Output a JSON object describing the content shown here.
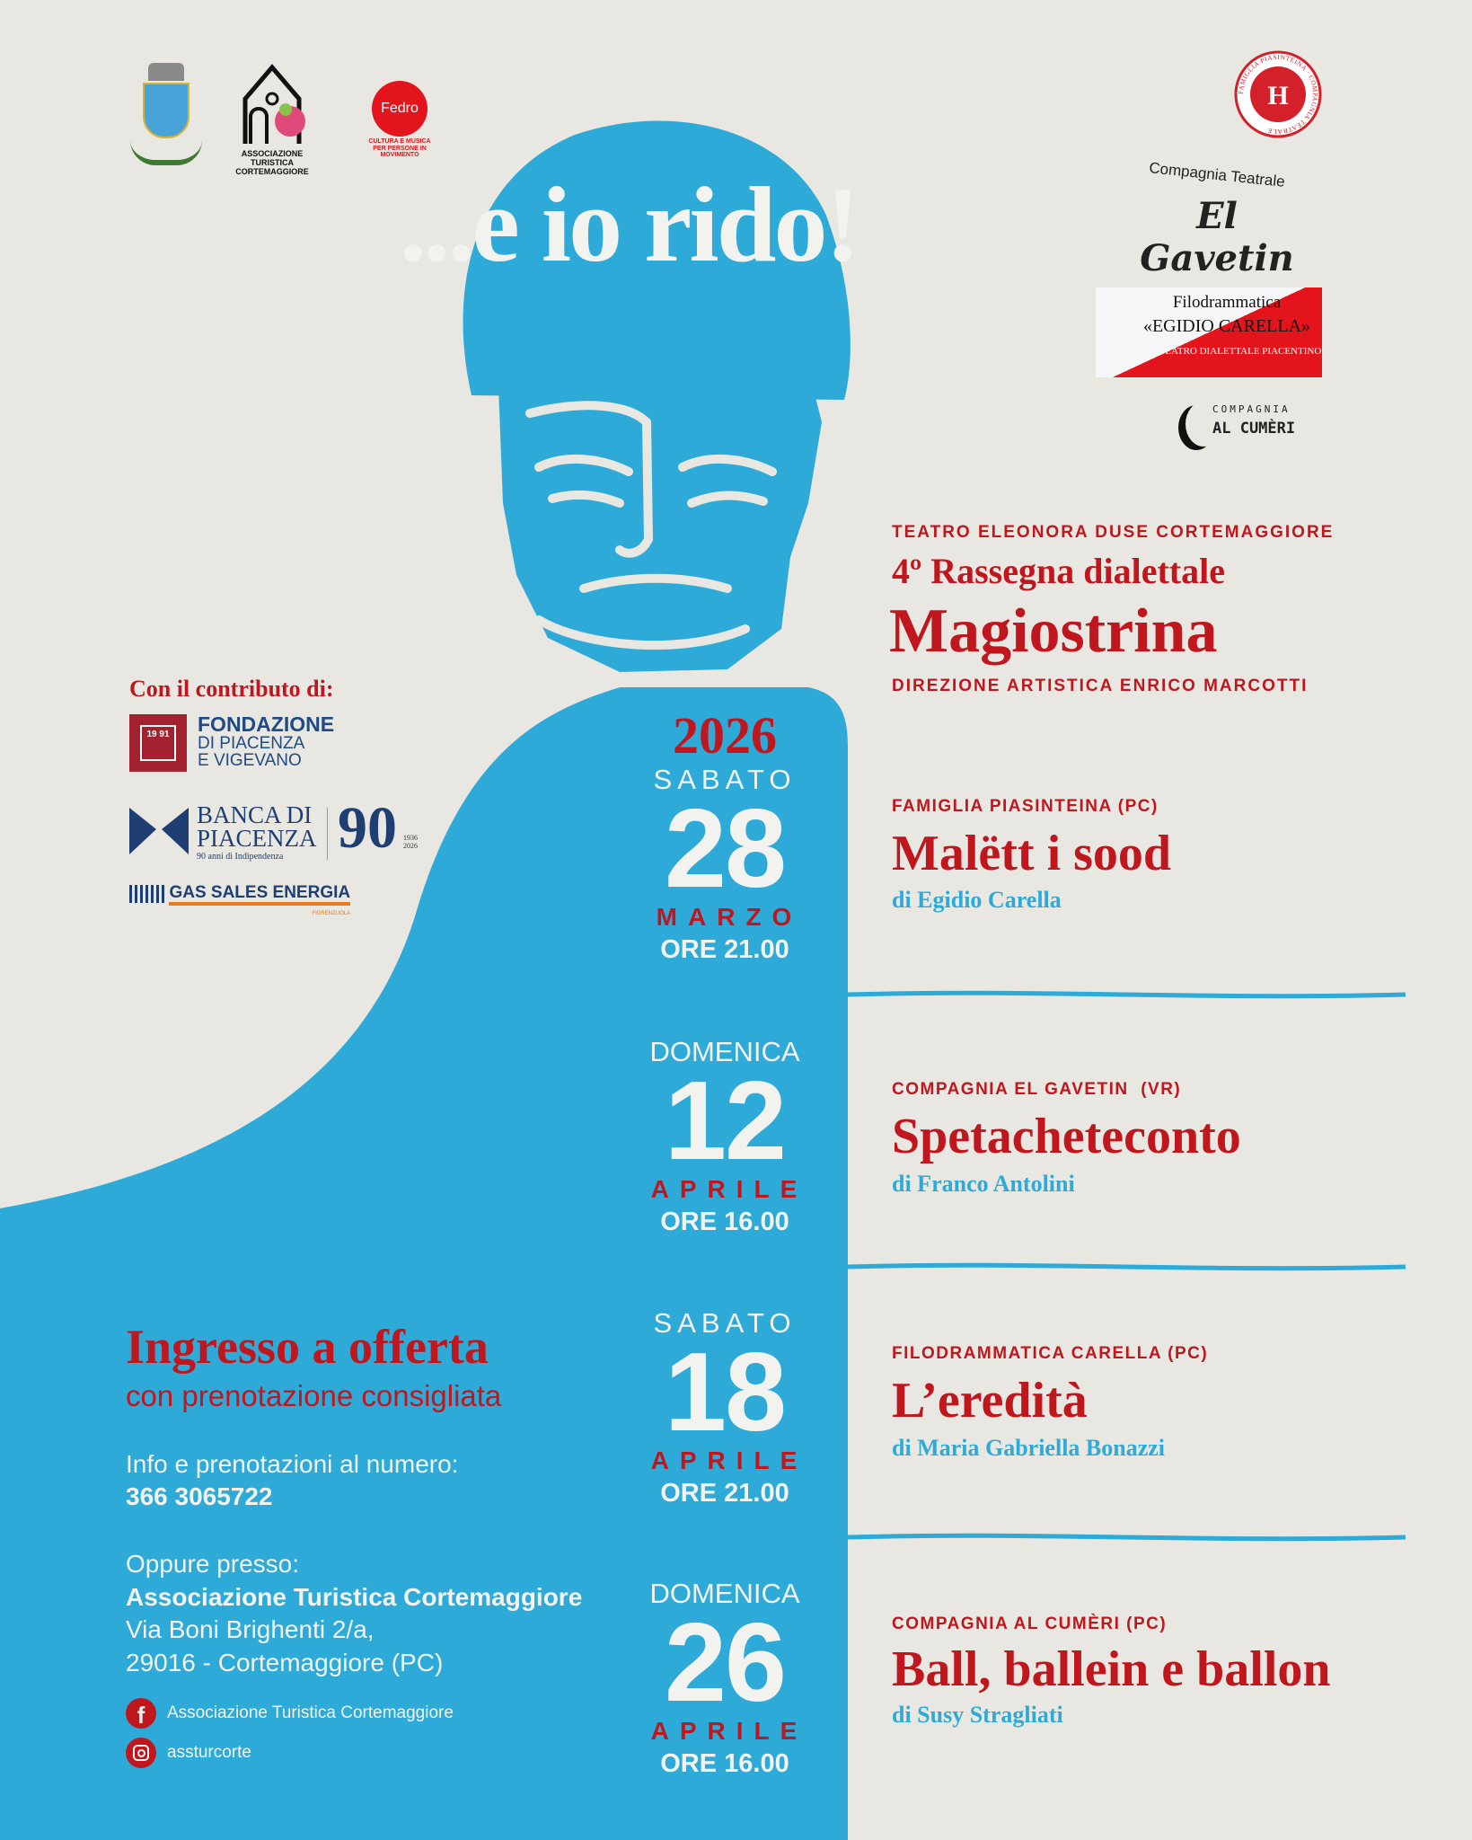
{
  "colors": {
    "background": "#e8e7e1",
    "blue": "#2eaad8",
    "red": "#c0161e",
    "light": "#f2f2ee"
  },
  "headline": "...e io rido!",
  "logos_top_left": {
    "comune": "Cortemaggiore",
    "associazione": [
      "ASSOCIAZIONE",
      "TURISTICA",
      "CORTEMAGGIORE"
    ],
    "fedro": {
      "name": "Fedro",
      "tagline": [
        "CULTURA E MUSICA",
        "PER PERSONE IN MOVIMENTO"
      ]
    }
  },
  "logos_top_right": {
    "famiglia": "FAMIGLIA PIASINTEINA · COMPAGNIA TEATRALE",
    "gavetin": {
      "line1": "Compagnia Teatrale",
      "line2": "El Gavetin"
    },
    "carella": {
      "line1": "Filodrammatica",
      "line2": "«EGIDIO CARELLA»",
      "line3": "TEATRO DIALETTALE PIACENTINO"
    },
    "cumeri": {
      "line1": "COMPAGNIA",
      "line2": "AL CUMÈRI"
    }
  },
  "header": {
    "venue": "TEATRO ELEONORA DUSE CORTEMAGGIORE",
    "subtitle": "4º Rassegna dialettale",
    "title": "Magiostrina",
    "direction": "DIREZIONE ARTISTICA ENRICO MARCOTTI"
  },
  "sponsors": {
    "heading": "Con il contributo di:",
    "fondazione": {
      "line1": "FONDAZIONE",
      "line2": "DI PIACENZA",
      "line3": "E VIGEVANO",
      "mark": "19 91"
    },
    "banca": {
      "line1": "BANCA DI",
      "line2": "PIACENZA",
      "line3": "90 anni di Indipendenza",
      "badge": "90",
      "years": "1936 2026"
    },
    "gas": {
      "name": "GAS SALES ENERGIA",
      "sub": "FIORENZUOLA"
    }
  },
  "year": "2026",
  "events": [
    {
      "weekday": "SABATO",
      "day": "28",
      "month": "MARZO",
      "time": "ORE 21.00",
      "company": "FAMIGLIA PIASINTEINA (PC)",
      "title": "Malëtt i sood",
      "author": "di Egidio Carella"
    },
    {
      "weekday": "DOMENICA",
      "day": "12",
      "month": "APRILE",
      "time": "ORE 16.00",
      "company": "COMPAGNIA EL GAVETIN  (VR)",
      "title": "Spetacheteconto",
      "author": "di Franco Antolini"
    },
    {
      "weekday": "SABATO",
      "day": "18",
      "month": "APRILE",
      "time": "ORE 21.00",
      "company": "FILODRAMMATICA CARELLA (PC)",
      "title": "L’eredità",
      "author": "di Maria Gabriella Bonazzi"
    },
    {
      "weekday": "DOMENICA",
      "day": "26",
      "month": "APRILE",
      "time": "ORE 16.00",
      "company": "COMPAGNIA AL CUMÈRI (PC)",
      "title": "Ball, ballein e ballon",
      "author": "di Susy Stragliati"
    }
  ],
  "info": {
    "entry": "Ingresso a offerta",
    "entry_sub": "con prenotazione consigliata",
    "phone_label": "Info e prenotazioni al numero:",
    "phone": "366 3065722",
    "alt_label": "Oppure presso:",
    "place": "Associazione Turistica Cortemaggiore",
    "address1": "Via Boni Brighenti 2/a,",
    "address2": "29016 - Cortemaggiore (PC)",
    "facebook": "Associazione Turistica Cortemaggiore",
    "instagram": "assturcorte",
    "facebook_icon": "facebook-icon",
    "instagram_icon": "instagram-icon"
  }
}
